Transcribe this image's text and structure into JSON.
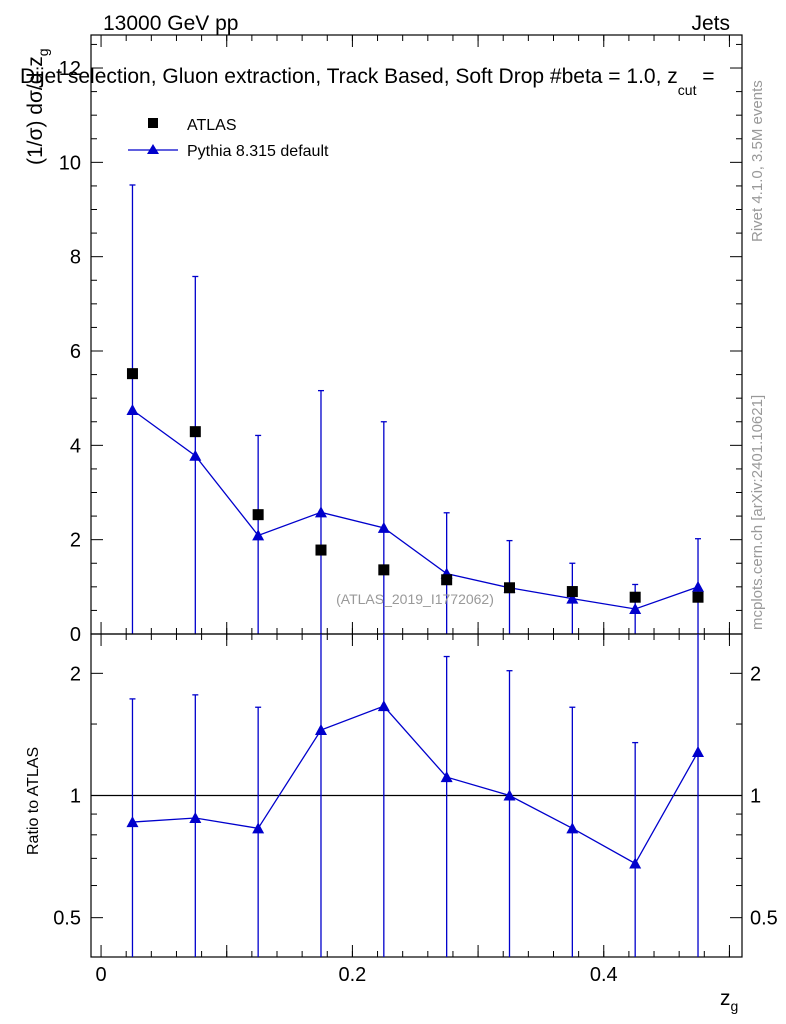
{
  "header": {
    "energy_label": "13000 GeV pp",
    "category": "Jets",
    "title_part1": "Dijet selection, Gluon extraction, Track Based, Soft Drop #b",
    "title_part2": "eta = 1.0, z",
    "title_sub": "cut",
    "title_part3": " = "
  },
  "side_labels": {
    "rivet": "Rivet 4.1.0,  3.5M events",
    "mcplots": "mcplots.cern.ch [arXiv:2401.10621]"
  },
  "watermark": "(ATLAS_2019_I1772062)",
  "colors": {
    "data": "#000000",
    "mc": "#0000cc",
    "watermark": "#999999"
  },
  "chart_data": [
    {
      "type": "scatter",
      "panel": "main",
      "ylabel_main": "(1/σ) dσ/d z",
      "ylabel_sub": "g",
      "ylim": [
        0,
        12.7
      ],
      "yticks": [
        0,
        2,
        4,
        6,
        8,
        10,
        12
      ],
      "ytick_labels": [
        "0",
        "2",
        "4",
        "6",
        "8",
        "10",
        "12"
      ],
      "x": [
        0.025,
        0.075,
        0.125,
        0.175,
        0.225,
        0.275,
        0.325,
        0.375,
        0.425,
        0.475
      ],
      "series": [
        {
          "name": "ATLAS",
          "marker": "square",
          "values": [
            5.52,
            4.29,
            2.53,
            1.78,
            1.36,
            1.15,
            0.98,
            0.9,
            0.78,
            0.78
          ],
          "err_up": [
            0,
            0,
            0,
            0,
            0,
            0,
            0,
            0,
            0,
            0
          ],
          "err_down": [
            0,
            0,
            0,
            0,
            0,
            0,
            0,
            0,
            0,
            0
          ]
        },
        {
          "name": "Pythia 8.315 default",
          "marker": "triangle",
          "line": true,
          "values": [
            4.75,
            3.78,
            2.09,
            2.58,
            2.25,
            1.28,
            0.98,
            0.75,
            0.53,
            1.0
          ],
          "err_up": [
            4.77,
            3.8,
            2.12,
            2.58,
            2.25,
            1.29,
            1.0,
            0.75,
            0.52,
            1.02
          ],
          "err_down": [
            4.75,
            3.78,
            2.09,
            2.58,
            2.25,
            1.28,
            0.98,
            0.75,
            0.53,
            1.0
          ]
        }
      ],
      "legend": [
        "ATLAS",
        "Pythia 8.315 default"
      ],
      "legend_position": "top-left"
    },
    {
      "type": "line",
      "panel": "ratio",
      "ylabel": "Ratio to ATLAS",
      "yscale": "log",
      "ylim": [
        0.4,
        2.5
      ],
      "yticks": [
        0.5,
        1,
        2
      ],
      "ytick_labels": [
        "0.5",
        "1",
        "2"
      ],
      "reference_line": 1,
      "xlabel": "z",
      "xlabel_sub": "g",
      "xlim": [
        -0.008,
        0.51
      ],
      "xticks": [
        0,
        0.2,
        0.4
      ],
      "xtick_labels": [
        "0",
        "0.2",
        "0.4"
      ],
      "x": [
        0.025,
        0.075,
        0.125,
        0.175,
        0.225,
        0.275,
        0.325,
        0.375,
        0.425,
        0.475
      ],
      "values": [
        0.86,
        0.88,
        0.83,
        1.45,
        1.66,
        1.11,
        1.0,
        0.83,
        0.68,
        1.28
      ],
      "err_low": [
        0.0,
        0.0,
        0.0,
        0.0,
        0.0,
        0.0,
        0.0,
        0.0,
        0.0,
        0.0
      ],
      "err_high": [
        1.73,
        1.77,
        1.65,
        3.0,
        3.0,
        2.2,
        2.03,
        1.65,
        1.35,
        3.0
      ]
    }
  ]
}
